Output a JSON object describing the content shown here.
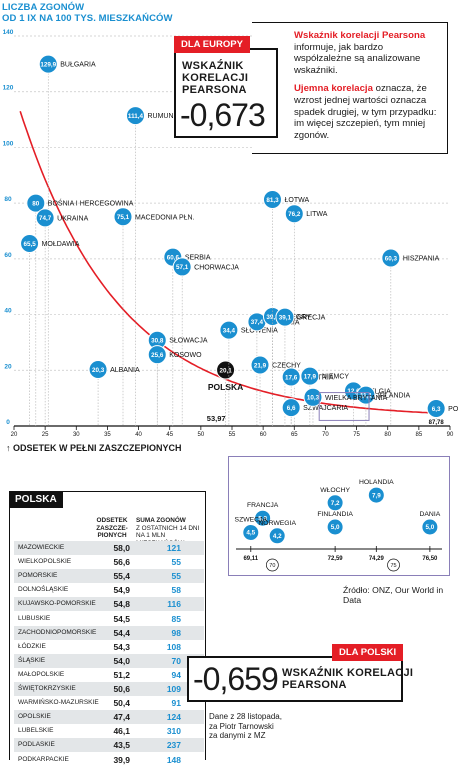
{
  "header": {
    "ytitle_line1": "LICZBA ZGONÓW",
    "ytitle_line2": "OD 1 IX NA 100 TYS. MIESZKAŃCÓW",
    "xtitle": "↑ ODSETEK W PEŁNI ZASZCZEPIONYCH"
  },
  "europe_box": {
    "badge": "DLA EUROPY",
    "label_line1": "WSKAŹNIK",
    "label_line2": "KORELACJI",
    "label_line3": "PEARSONA",
    "value": "-0,673"
  },
  "explanation": {
    "p1_bold": "Wskaźnik korelacji Pearsona",
    "p1_text": " informuje, jak bardzo współzależne są analizowane wskaźniki.",
    "p2_bold": "Ujemna korelacja",
    "p2_text": " oznacza, że wzrost jednej wartości oznacza spadek drugiej, w tym przypadku: im więcej szczepień, tym mniej zgonów."
  },
  "poland_box": {
    "badge": "DLA POLSKI",
    "value": "-0,659",
    "label_line1": "WSKAŹNIK KORELACJI",
    "label_line2": "PEARSONA"
  },
  "source": "Źródło: ONZ, Our World in Data",
  "note_line1": "Dane z 28 listopada,",
  "note_line2": "za Piotr Tarnowski",
  "note_line3": "za danymi z MZ",
  "colors": {
    "accent": "#1a8fd0",
    "red": "#e41e26",
    "poland": "#111111",
    "trend": "#e41e26",
    "inset_border": "#8a7fb8"
  },
  "chart_data": {
    "type": "scatter",
    "title": "",
    "ylabel": "LICZBA ZGONÓW OD 1 IX NA 100 TYS. MIESZKAŃCÓW",
    "xlabel": "ODSETEK W PEŁNI ZASZCZEPIONYCH",
    "xlim": [
      20,
      90
    ],
    "ylim": [
      0,
      140
    ],
    "x_ticks": [
      "20",
      "25",
      "30",
      "35",
      "40",
      "45",
      "50",
      "55",
      "60",
      "65",
      "70",
      "75",
      "80",
      "85",
      "90"
    ],
    "y_ticks": [
      "0",
      "20",
      "40",
      "60",
      "80",
      "100",
      "120",
      "140"
    ],
    "special_x_labels": [
      "53,97",
      "87,78"
    ],
    "points": [
      {
        "name": "BUŁGARIA",
        "x": 25.5,
        "y": 129.9,
        "label": "129,9"
      },
      {
        "name": "RUMUNIA",
        "x": 39.5,
        "y": 111.4,
        "label": "111,4"
      },
      {
        "name": "BOŚNIA I HERCEGOWINA",
        "x": 23.5,
        "y": 80,
        "label": "80"
      },
      {
        "name": "UKRAINA",
        "x": 25.0,
        "y": 74.7,
        "label": "74,7"
      },
      {
        "name": "MOŁDAWIA",
        "x": 22.5,
        "y": 65.5,
        "label": "65,5"
      },
      {
        "name": "MACEDONIA PŁN.",
        "x": 37.5,
        "y": 75.1,
        "label": "75,1"
      },
      {
        "name": "SERBIA",
        "x": 45.5,
        "y": 60.6,
        "label": "60,6"
      },
      {
        "name": "CHORWACJA",
        "x": 47.0,
        "y": 57.1,
        "label": "57,1"
      },
      {
        "name": "SŁOWACJA",
        "x": 43.0,
        "y": 30.8,
        "label": "30,8"
      },
      {
        "name": "KOSOWO",
        "x": 43.0,
        "y": 25.6,
        "label": "25,6"
      },
      {
        "name": "ALBANIA",
        "x": 33.5,
        "y": 20.3,
        "label": "20,3"
      },
      {
        "name": "POLSKA",
        "x": 53.97,
        "y": 20.1,
        "label": "20,1"
      },
      {
        "name": "SŁOWENIA",
        "x": 54.5,
        "y": 34.4,
        "label": "34,4"
      },
      {
        "name": "ESTONIA",
        "x": 59.0,
        "y": 37.4,
        "label": "37,4"
      },
      {
        "name": "WĘGRY",
        "x": 61.5,
        "y": 39.3,
        "label": "39,3"
      },
      {
        "name": "GRECJA",
        "x": 63.5,
        "y": 39.1,
        "label": "39,1"
      },
      {
        "name": "CZECHY",
        "x": 59.5,
        "y": 21.9,
        "label": "21,9"
      },
      {
        "name": "ŁOTWA",
        "x": 61.5,
        "y": 81.3,
        "label": "81,3"
      },
      {
        "name": "LITWA",
        "x": 65.0,
        "y": 76.2,
        "label": "76,2"
      },
      {
        "name": "AUSTRIA",
        "x": 64.5,
        "y": 17.6,
        "label": "17,6"
      },
      {
        "name": "SZWAJCARIA",
        "x": 64.5,
        "y": 6.6,
        "label": "6,6"
      },
      {
        "name": "NIEMCY",
        "x": 67.5,
        "y": 17.9,
        "label": "17,9"
      },
      {
        "name": "BELGIA",
        "x": 74.5,
        "y": 12.6,
        "label": "12,6"
      },
      {
        "name": "IRLANDIA",
        "x": 76.5,
        "y": 11.1,
        "label": "11,1"
      },
      {
        "name": "WIELKA BRYTANIA",
        "x": 68.0,
        "y": 10.3,
        "label": "10,3"
      },
      {
        "name": "HISZPANIA",
        "x": 80.5,
        "y": 60.3,
        "label": "60,3"
      },
      {
        "name": "PORTUGALIA",
        "x": 87.78,
        "y": 6.3,
        "label": "6,3"
      }
    ],
    "inset": {
      "x_ticks": [
        "69,11",
        "72,59",
        "74,29",
        "76,50"
      ],
      "x_marker": "70",
      "x_marker2": "75",
      "points": [
        {
          "name": "FRANCJA",
          "x": 69.6,
          "y": 5.8,
          "label": "5,8"
        },
        {
          "name": "SZWECJA",
          "x": 69.11,
          "y": 4.5,
          "label": "4,5"
        },
        {
          "name": "NORWEGIA",
          "x": 70.2,
          "y": 4.2,
          "label": "4,2"
        },
        {
          "name": "WŁOCHY",
          "x": 72.59,
          "y": 7.2,
          "label": "7,2"
        },
        {
          "name": "FINLANDIA",
          "x": 72.59,
          "y": 5.0,
          "label": "5,0"
        },
        {
          "name": "HOLANDIA",
          "x": 74.29,
          "y": 7.9,
          "label": "7,9"
        },
        {
          "name": "DANIA",
          "x": 76.5,
          "y": 5.0,
          "label": "5,0"
        }
      ]
    }
  },
  "poland_table": {
    "title": "POLSKA",
    "col1_line1": "ODSETEK",
    "col1_line2": "ZASZCZE-",
    "col1_line3": "PIONYCH",
    "col2_line1": "SUMA ZGONÓW",
    "col2_line2": "Z OSTATNICH 14 DNI",
    "col2_line3": "NA 1 MLN MIESZKAŃCÓW",
    "rows": [
      {
        "name": "MAZOWIECKIE",
        "v1": "58,0",
        "v2": "121"
      },
      {
        "name": "WIELKOPOLSKIE",
        "v1": "56,6",
        "v2": "55"
      },
      {
        "name": "POMORSKIE",
        "v1": "55,4",
        "v2": "55"
      },
      {
        "name": "DOLNOŚLĄSKIE",
        "v1": "54,9",
        "v2": "58"
      },
      {
        "name": "KUJAWSKO-POMORSKIE",
        "v1": "54,8",
        "v2": "116"
      },
      {
        "name": "LUBUSKIE",
        "v1": "54,5",
        "v2": "85"
      },
      {
        "name": "ZACHODNIOPOMORSKIE",
        "v1": "54,4",
        "v2": "98"
      },
      {
        "name": "ŁÓDZKIE",
        "v1": "54,3",
        "v2": "108"
      },
      {
        "name": "ŚLĄSKIE",
        "v1": "54,0",
        "v2": "70"
      },
      {
        "name": "MAŁOPOLSKIE",
        "v1": "51,2",
        "v2": "94"
      },
      {
        "name": "ŚWIĘTOKRZYSKIE",
        "v1": "50,6",
        "v2": "109"
      },
      {
        "name": "WARMIŃSKO-MAZURSKIE",
        "v1": "50,4",
        "v2": "91"
      },
      {
        "name": "OPOLSKIE",
        "v1": "47,4",
        "v2": "124"
      },
      {
        "name": "LUBELSKIE",
        "v1": "46,1",
        "v2": "310"
      },
      {
        "name": "PODLASKIE",
        "v1": "43,5",
        "v2": "237"
      },
      {
        "name": "PODKARPACKIE",
        "v1": "39,9",
        "v2": "148"
      }
    ]
  }
}
